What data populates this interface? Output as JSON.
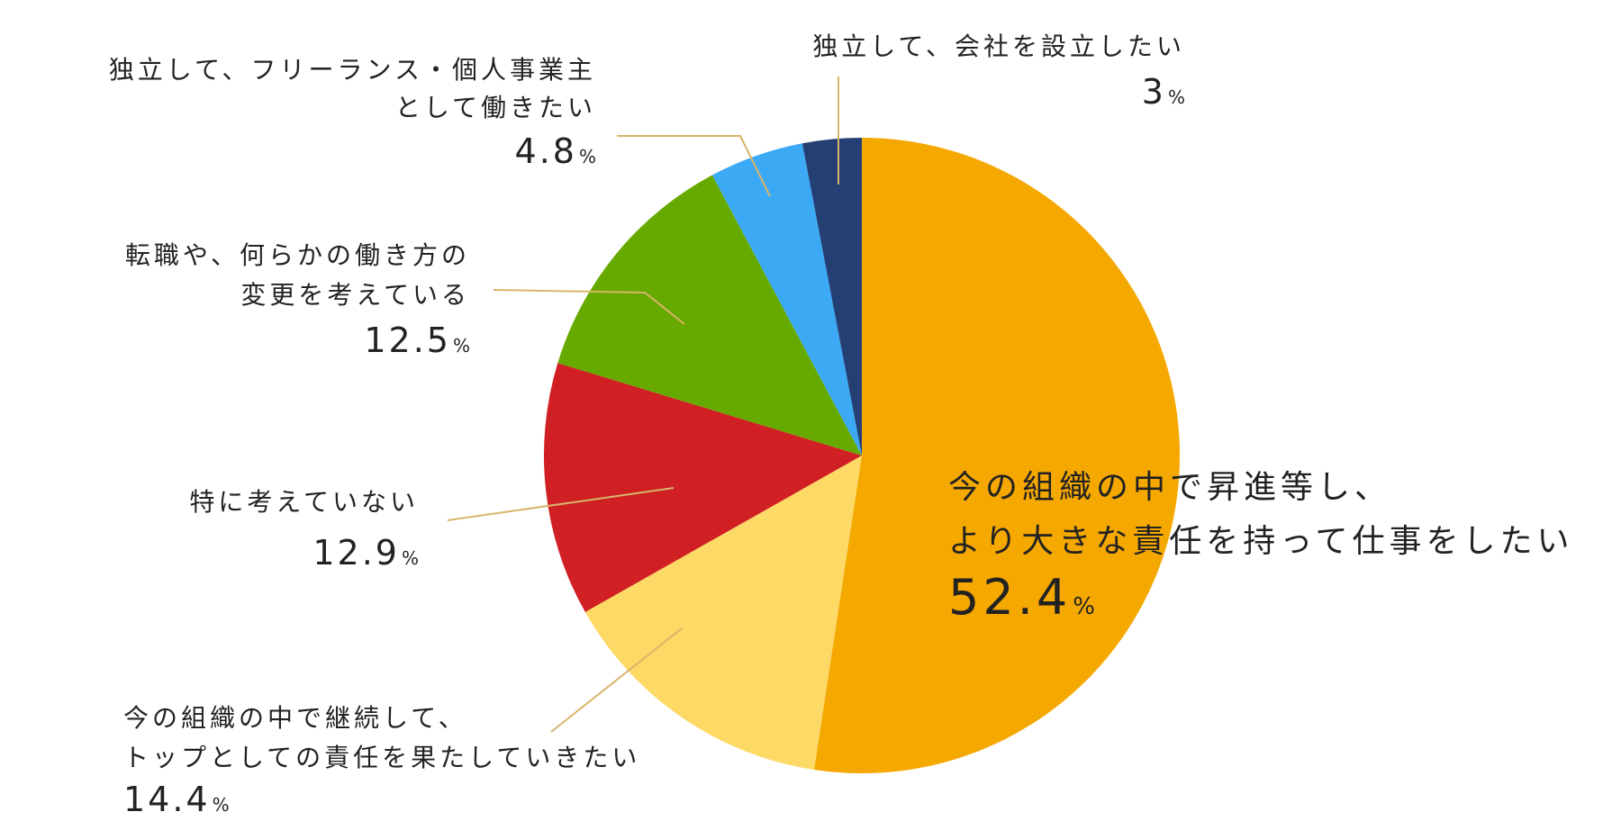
{
  "chart_data": {
    "type": "pie",
    "start_angle_deg": 0,
    "direction": "clockwise",
    "slices": [
      {
        "line1": "今の組織の中で昇進等し、",
        "line2": "より大きな責任を持って仕事をしたい",
        "value": 52.4,
        "value_text": "52.4",
        "color": "#F5A800"
      },
      {
        "line1": "今の組織の中で継続して、",
        "line2": "トップとしての責任を果たしていきたい",
        "value": 14.4,
        "value_text": "14.4",
        "color": "#FDD966"
      },
      {
        "line1": "特に考えていない",
        "line2": "",
        "value": 12.9,
        "value_text": "12.9",
        "color": "#D02023"
      },
      {
        "line1": "転職や、何らかの働き方の",
        "line2": "変更を考えている",
        "value": 12.5,
        "value_text": "12.5",
        "color": "#66AA00"
      },
      {
        "line1": "独立して、フリーランス・個人事業主",
        "line2": "として働きたい",
        "value": 4.8,
        "value_text": "4.8",
        "color": "#3CA9F5"
      },
      {
        "line1": "独立して、会社を設立したい",
        "line2": "",
        "value": 3,
        "value_text": "3",
        "color": "#243F73"
      }
    ],
    "percent_sign": "%",
    "leader_line_color": "#D9B46A"
  }
}
